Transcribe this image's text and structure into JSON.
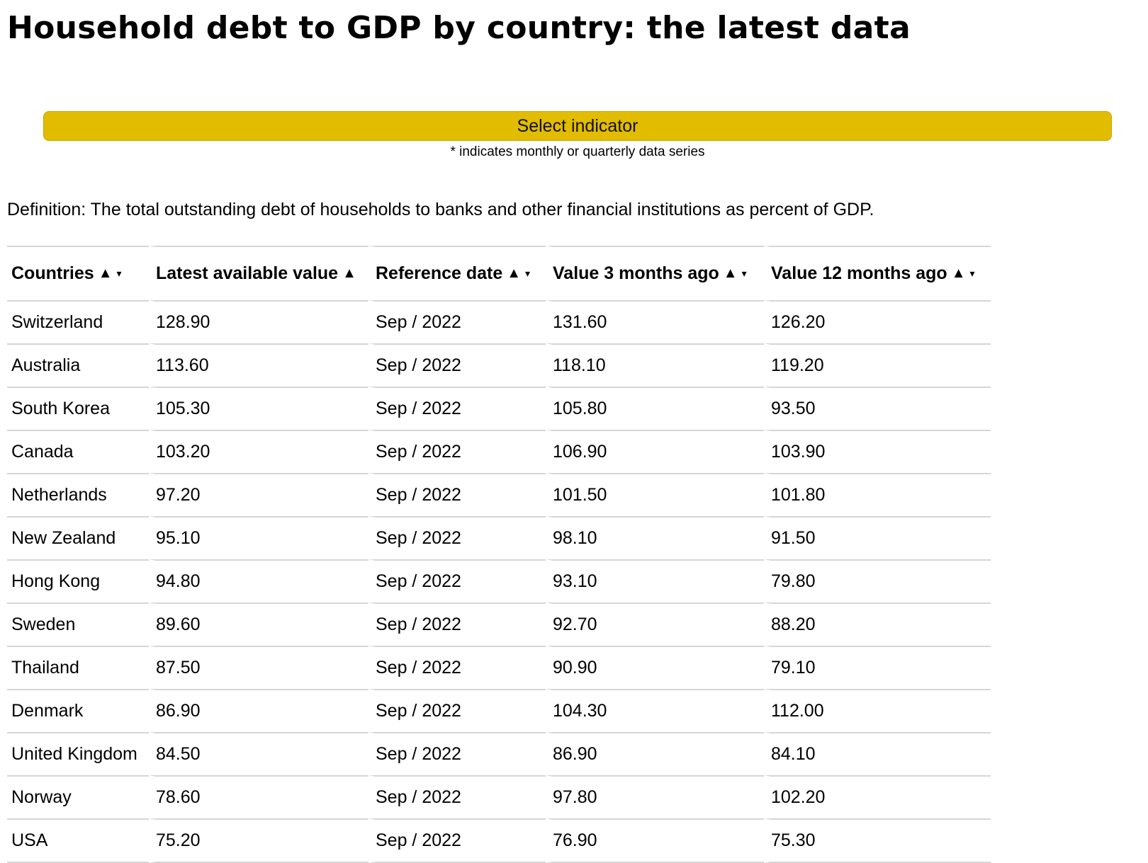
{
  "page": {
    "title": "Household debt to GDP by country: the latest data"
  },
  "indicator": {
    "button_label": "Select indicator",
    "note": "* indicates monthly or quarterly data series"
  },
  "definition": "Definition: The total outstanding debt of households to banks and other financial institutions as percent of GDP.",
  "table": {
    "headers": [
      {
        "label": "Countries",
        "sort_up": "▲",
        "sort_down": "▾"
      },
      {
        "label": "Latest available value",
        "sort_up": "▲",
        "sort_down": ""
      },
      {
        "label": "Reference date",
        "sort_up": "▲",
        "sort_down": "▾"
      },
      {
        "label": "Value 3 months ago",
        "sort_up": "▲",
        "sort_down": "▾"
      },
      {
        "label": "Value 12 months ago",
        "sort_up": "▲",
        "sort_down": "▾"
      }
    ],
    "rows": [
      [
        "Switzerland",
        "128.90",
        "Sep / 2022",
        "131.60",
        "126.20"
      ],
      [
        "Australia",
        "113.60",
        "Sep / 2022",
        "118.10",
        "119.20"
      ],
      [
        "South Korea",
        "105.30",
        "Sep / 2022",
        "105.80",
        "93.50"
      ],
      [
        "Canada",
        "103.20",
        "Sep / 2022",
        "106.90",
        "103.90"
      ],
      [
        "Netherlands",
        "97.20",
        "Sep / 2022",
        "101.50",
        "101.80"
      ],
      [
        "New Zealand",
        "95.10",
        "Sep / 2022",
        "98.10",
        "91.50"
      ],
      [
        "Hong Kong",
        "94.80",
        "Sep / 2022",
        "93.10",
        "79.80"
      ],
      [
        "Sweden",
        "89.60",
        "Sep / 2022",
        "92.70",
        "88.20"
      ],
      [
        "Thailand",
        "87.50",
        "Sep / 2022",
        "90.90",
        "79.10"
      ],
      [
        "Denmark",
        "86.90",
        "Sep / 2022",
        "104.30",
        "112.00"
      ],
      [
        "United Kingdom",
        "84.50",
        "Sep / 2022",
        "86.90",
        "84.10"
      ],
      [
        "Norway",
        "78.60",
        "Sep / 2022",
        "97.80",
        "102.20"
      ],
      [
        "USA",
        "75.20",
        "Sep / 2022",
        "76.90",
        "75.30"
      ]
    ]
  },
  "colors": {
    "button_background": "#e2bc00",
    "row_divider": "#d6d6d6"
  }
}
